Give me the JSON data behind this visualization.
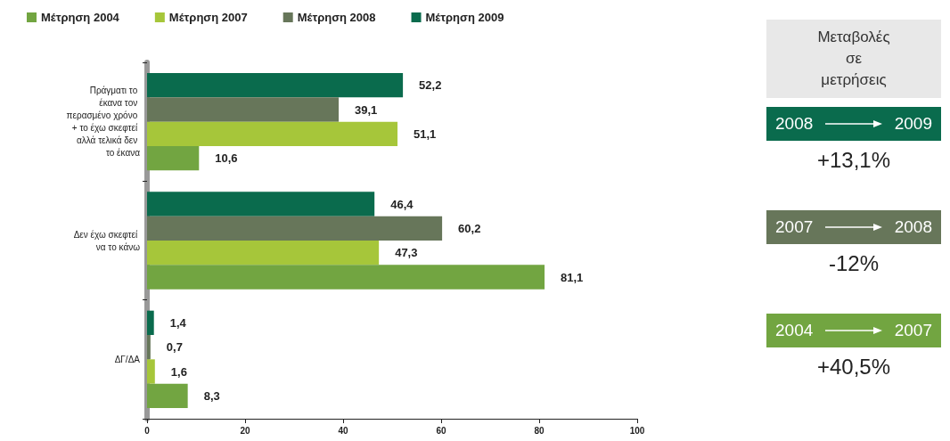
{
  "chart_data": {
    "type": "bar",
    "orientation": "horizontal",
    "categories": [
      "Πράγματι το έκανα τον περασμένο χρόνο + το έχω σκεφτεί αλλά τελικά δεν το έκανα",
      "Δεν έχω σκεφτεί να το κάνω",
      "ΔΓ/ΔΑ"
    ],
    "series": [
      {
        "name": "Μέτρηση 2004",
        "color": "#72a541",
        "values": [
          10.6,
          81.1,
          8.3
        ],
        "value_labels": [
          "10,6",
          "81,1",
          "8,3"
        ]
      },
      {
        "name": "Μέτρηση 2007",
        "color": "#a6c63a",
        "values": [
          51.1,
          47.3,
          1.6
        ],
        "value_labels": [
          "51,1",
          "47,3",
          "1,6"
        ]
      },
      {
        "name": "Μέτρηση 2008",
        "color": "#67765a",
        "values": [
          39.1,
          60.2,
          0.7
        ],
        "value_labels": [
          "39,1",
          "60,2",
          "0,7"
        ]
      },
      {
        "name": "Μέτρηση 2009",
        "color": "#0a6b4d",
        "values": [
          52.2,
          46.4,
          1.4
        ],
        "value_labels": [
          "52,2",
          "46,4",
          "1,4"
        ]
      }
    ],
    "xlim": [
      0,
      100
    ],
    "xticks": [
      0,
      20,
      40,
      60,
      80,
      100
    ],
    "grid": false,
    "legend": "top left",
    "annotations": [
      "Μεταβολές σε μετρήσεις",
      "2008",
      "2009",
      "+13,1%",
      "2007",
      "2008",
      "-12%",
      "2004",
      "2007",
      "+40,5%"
    ]
  }
}
